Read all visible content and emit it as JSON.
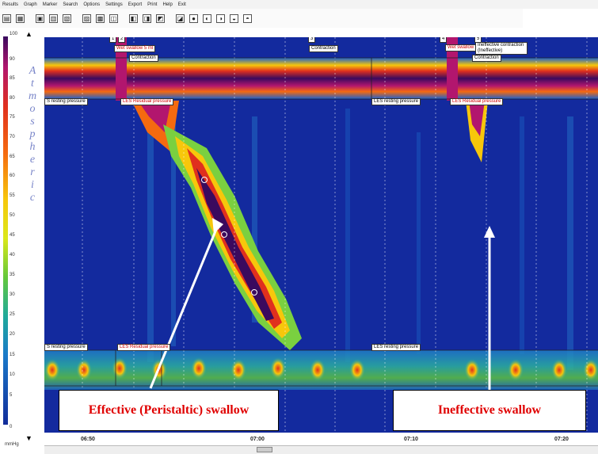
{
  "menu": [
    "Results",
    "Graph",
    "Marker",
    "Search",
    "Options",
    "Settings",
    "Export",
    "Print",
    "Help",
    "Exit"
  ],
  "toolbar_icons": [
    "open-icon",
    "save-icon",
    "window-icon",
    "tile-icon",
    "compare-icon",
    "chart-icon",
    "cursor-icon",
    "zoom-icon",
    "marker-icon",
    "ruler-icon",
    "doc-icon",
    "pin-icon",
    "pin2-icon",
    "note-icon",
    "flag-icon",
    "edit-icon",
    "tool-icon"
  ],
  "axis": {
    "ticks": [
      "100",
      "90",
      "85",
      "80",
      "75",
      "70",
      "65",
      "60",
      "55",
      "50",
      "45",
      "40",
      "35",
      "30",
      "25",
      "20",
      "15",
      "10",
      "5",
      "0"
    ],
    "unit": "mmHg",
    "vertical_word": [
      "A",
      "t",
      "m",
      "o",
      "s",
      "p",
      "h",
      "e",
      "r",
      "i",
      "c"
    ]
  },
  "time_labels": [
    "06:50",
    "07:00",
    "07:10",
    "07:20"
  ],
  "markers": {
    "wet_swallow_1": "Wet swallow 5 ml",
    "contraction": "Contraction",
    "wet_swallow_2": "Wet swallow",
    "ineffective_contraction": "Ineffective contraction (Ineffective)",
    "contraction_2": "Contraction",
    "les_resting_1": "S resting pressure",
    "les_residual_1": "LES Residual pressure",
    "les_resting_2": "LES resting pressure",
    "les_residual_2": "LES Residual pressure",
    "les_resting_3": "S resting pressure",
    "les_residual_3": "LES Residual pressure",
    "les_resting_4": "LES resting pressure",
    "marker_nums": [
      "1",
      "2",
      "3",
      "4",
      "5"
    ]
  },
  "annotations": {
    "effective": "Effective (Peristaltic) swallow",
    "ineffective": "Ineffective swallow"
  }
}
